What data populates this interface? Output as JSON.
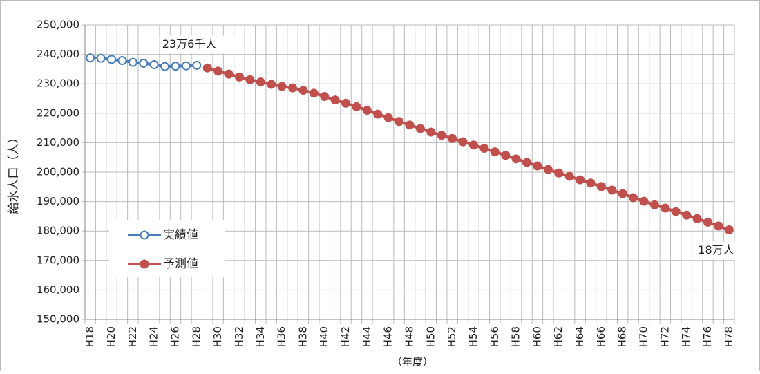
{
  "chart_data": {
    "type": "line",
    "y_label": "給水人口（人）",
    "x_label": "（年度）",
    "categories": [
      "H18",
      null,
      "H20",
      null,
      "H22",
      null,
      "H24",
      null,
      "H26",
      null,
      "H28",
      null,
      "H30",
      null,
      "H32",
      null,
      "H34",
      null,
      "H36",
      null,
      "H38",
      null,
      "H40",
      null,
      "H42",
      null,
      "H44",
      null,
      "H46",
      null,
      "H48",
      null,
      "H50",
      null,
      "H52",
      null,
      "H54",
      null,
      "H56",
      null,
      "H58",
      null,
      "H60",
      null,
      "H62",
      null,
      "H64",
      null,
      "H66",
      null,
      "H68",
      null,
      "H70",
      null,
      "H72",
      null,
      "H74",
      null,
      "H76",
      null,
      "H78"
    ],
    "series": [
      {
        "name": "実績値",
        "color": "#4a7ebb",
        "marker_fill": "#ffffff",
        "values": [
          238800,
          238700,
          238300,
          237900,
          237300,
          237000,
          236500,
          235900,
          236000,
          236100,
          236300,
          null,
          null,
          null,
          null,
          null,
          null,
          null,
          null,
          null,
          null,
          null,
          null,
          null,
          null,
          null,
          null,
          null,
          null,
          null,
          null,
          null,
          null,
          null,
          null,
          null,
          null,
          null,
          null,
          null,
          null,
          null,
          null,
          null,
          null,
          null,
          null,
          null,
          null,
          null,
          null,
          null,
          null,
          null,
          null,
          null,
          null,
          null,
          null,
          null,
          null
        ]
      },
      {
        "name": "予測値",
        "color": "#c0504d",
        "marker_fill": "#c0504d",
        "values": [
          null,
          null,
          null,
          null,
          null,
          null,
          null,
          null,
          null,
          null,
          null,
          235400,
          234300,
          233300,
          232300,
          231400,
          230600,
          229800,
          229100,
          228600,
          227800,
          226800,
          225700,
          224500,
          223400,
          222200,
          221000,
          219700,
          218500,
          217200,
          216000,
          214800,
          213600,
          212500,
          211400,
          210300,
          209200,
          208100,
          206900,
          205700,
          204500,
          203300,
          202100,
          200900,
          199700,
          198600,
          197400,
          196300,
          195100,
          193900,
          192700,
          191300,
          190100,
          188900,
          187800,
          186600,
          185400,
          184200,
          183000,
          181700,
          180400
        ]
      }
    ],
    "annotations": [
      {
        "text": "23万6千人"
      },
      {
        "text": "18万人"
      }
    ],
    "ylim": [
      150000,
      250000
    ],
    "yticks": [
      {
        "value": 150000,
        "label": "150,000"
      },
      {
        "value": 160000,
        "label": "160,000"
      },
      {
        "value": 170000,
        "label": "170,000"
      },
      {
        "value": 180000,
        "label": "180,000"
      },
      {
        "value": 190000,
        "label": "190,000"
      },
      {
        "value": 200000,
        "label": "200,000"
      },
      {
        "value": 210000,
        "label": "210,000"
      },
      {
        "value": 220000,
        "label": "220,000"
      },
      {
        "value": 230000,
        "label": "230,000"
      },
      {
        "value": 240000,
        "label": "240,000"
      },
      {
        "value": 250000,
        "label": "250,000"
      }
    ],
    "grid": true,
    "legend": "lower left"
  }
}
